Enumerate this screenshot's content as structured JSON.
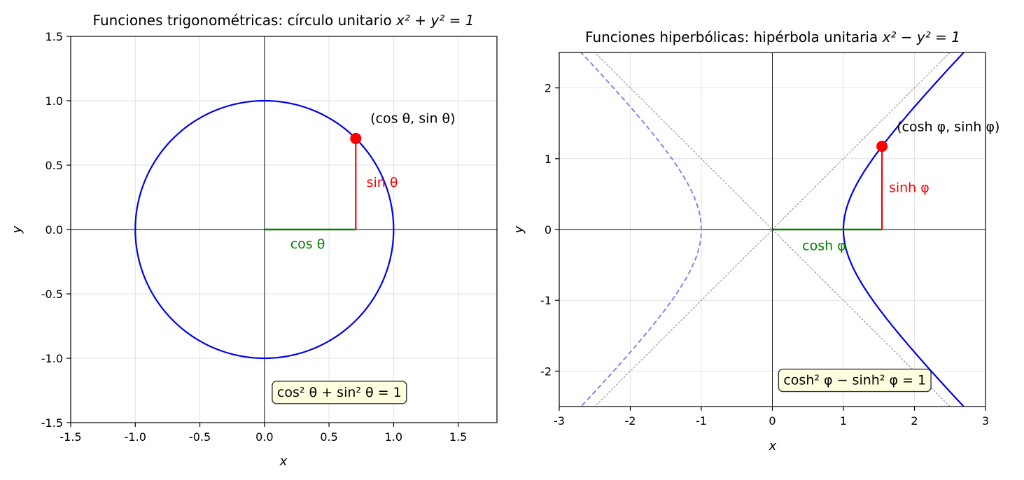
{
  "colors": {
    "curve": "#0000ee",
    "curve_mirror": "#7b7bf2",
    "cos": "#008000",
    "sin": "#ff0000",
    "point": "#ff0000",
    "box_fill": "#ffffe0",
    "grid": "#e2e2e2",
    "asymptote": "#888888"
  },
  "chart_data": [
    {
      "type": "line",
      "title": "Funciones trigonométricas: círculo unitario x² + y² = 1",
      "title_parts": {
        "text": "Funciones trigonométricas: círculo unitario ",
        "math": "x² + y² = 1"
      },
      "xlabel": "x",
      "ylabel": "y",
      "xlim": [
        -1.5,
        1.8
      ],
      "ylim": [
        -1.5,
        1.5
      ],
      "xticks": [
        -1.5,
        -1.0,
        -0.5,
        0.0,
        0.5,
        1.0,
        1.5
      ],
      "xtick_labels": [
        "-1.5",
        "-1.0",
        "-0.5",
        "0.0",
        "0.5",
        "1.0",
        "1.5"
      ],
      "yticks": [
        -1.5,
        -1.0,
        -0.5,
        0.0,
        0.5,
        1.0,
        1.5
      ],
      "ytick_labels": [
        "-1.5",
        "-1.0",
        "-0.5",
        "0.0",
        "0.5",
        "1.0",
        "1.5"
      ],
      "grid": true,
      "curve": {
        "shape": "circle",
        "center": [
          0,
          0
        ],
        "radius": 1
      },
      "point": {
        "x": 0.707,
        "y": 0.707,
        "label": "(cos θ, sin θ)",
        "label_pos": [
          0.82,
          0.83
        ]
      },
      "cos_segment": {
        "x": [
          0,
          0.707
        ],
        "y": [
          0,
          0
        ],
        "label": "cos θ",
        "label_pos": [
          0.2,
          -0.11
        ]
      },
      "sin_segment": {
        "x": [
          0.707,
          0.707
        ],
        "y": [
          0,
          0.707
        ],
        "label": "sin θ",
        "label_pos": [
          0.79,
          0.37
        ]
      },
      "identity": {
        "text": "cos² θ + sin² θ = 1",
        "pos": [
          0.58,
          -1.26
        ]
      }
    },
    {
      "type": "line",
      "title": "Funciones hiperbólicas: hipérbola unitaria x² − y² = 1",
      "title_parts": {
        "text": "Funciones hiperbólicas: hipérbola unitaria ",
        "math": "x² − y² = 1"
      },
      "xlabel": "x",
      "ylabel": "y",
      "xlim": [
        -3,
        3
      ],
      "ylim": [
        -2.5,
        2.5
      ],
      "xticks": [
        -3,
        -2,
        -1,
        0,
        1,
        2,
        3
      ],
      "xtick_labels": [
        "-3",
        "-2",
        "-1",
        "0",
        "1",
        "2",
        "3"
      ],
      "yticks": [
        -2,
        -1,
        0,
        1,
        2
      ],
      "ytick_labels": [
        "-2",
        "-1",
        "0",
        "1",
        "2"
      ],
      "grid": true,
      "curve": {
        "shape": "hyperbola",
        "a": 1,
        "t_range": [
          -1.7,
          1.7
        ]
      },
      "asymptotes": [
        {
          "slope": 1
        },
        {
          "slope": -1
        }
      ],
      "point": {
        "x": 1.543,
        "y": 1.175,
        "label": "(cosh φ, sinh φ)",
        "label_pos": [
          1.75,
          1.39
        ]
      },
      "cos_segment": {
        "x": [
          0,
          1.543
        ],
        "y": [
          0,
          0
        ],
        "label": "cosh φ",
        "label_pos": [
          0.42,
          -0.22
        ]
      },
      "sin_segment": {
        "x": [
          1.543,
          1.543
        ],
        "y": [
          0,
          1.175
        ],
        "label": "sinh φ",
        "label_pos": [
          1.64,
          0.6
        ]
      },
      "identity": {
        "text": "cosh² φ − sinh² φ = 1",
        "pos": [
          1.16,
          -2.12
        ]
      }
    }
  ]
}
